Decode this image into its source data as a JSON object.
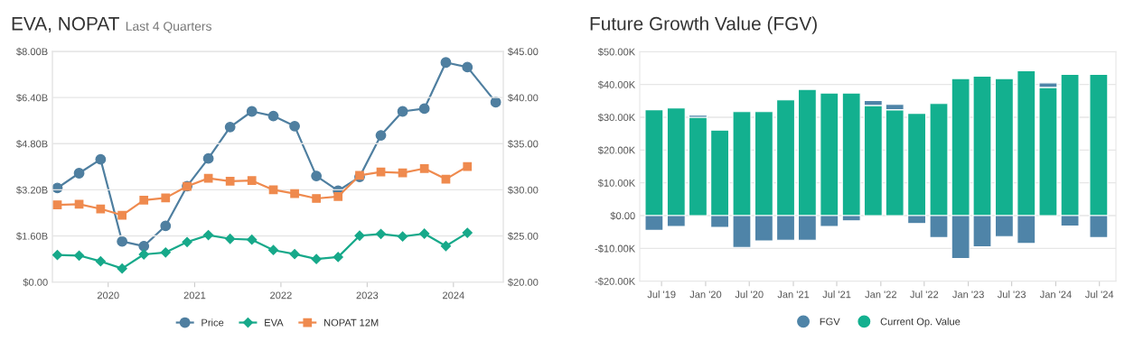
{
  "chart_data": [
    {
      "type": "line",
      "title": "EVA, NOPAT",
      "subtitle": "Last 4 Quarters",
      "series": [
        {
          "name": "Price",
          "color": "#4f7fa0",
          "marker": "circle",
          "axis": "y2",
          "x": [
            "2019-05-31",
            "2019-08-31",
            "2019-11-30",
            "2020-02-29",
            "2020-05-31",
            "2020-08-31",
            "2020-11-30",
            "2021-02-28",
            "2021-05-31",
            "2021-08-31",
            "2021-11-30",
            "2022-02-28",
            "2022-05-31",
            "2022-08-31",
            "2022-11-30",
            "2023-02-28",
            "2023-05-31",
            "2023-08-31",
            "2023-11-30",
            "2024-02-29",
            "2024-06-28"
          ],
          "values": [
            30.2,
            31.8,
            33.3,
            24.4,
            23.9,
            26.1,
            30.4,
            33.4,
            36.8,
            38.5,
            38.0,
            36.9,
            31.5,
            29.9,
            31.4,
            35.9,
            38.5,
            38.8,
            43.8,
            43.3,
            39.5
          ]
        },
        {
          "name": "EVA",
          "color": "#17a98a",
          "marker": "diamond",
          "x": [
            "2019-05-31",
            "2019-08-31",
            "2019-11-30",
            "2020-02-29",
            "2020-05-31",
            "2020-08-31",
            "2020-11-30",
            "2021-02-28",
            "2021-05-31",
            "2021-08-31",
            "2021-11-30",
            "2022-02-28",
            "2022-05-31",
            "2022-08-31",
            "2022-11-30",
            "2023-02-28",
            "2023-05-31",
            "2023-08-31",
            "2023-11-30",
            "2024-02-29"
          ],
          "values": [
            0.94,
            0.92,
            0.72,
            0.47,
            0.96,
            1.03,
            1.39,
            1.63,
            1.5,
            1.47,
            1.11,
            0.97,
            0.8,
            0.87,
            1.61,
            1.67,
            1.58,
            1.68,
            1.25,
            1.71
          ]
        },
        {
          "name": "NOPAT 12M",
          "color": "#ef8a4e",
          "marker": "square",
          "x": [
            "2019-05-31",
            "2019-08-31",
            "2019-11-30",
            "2020-02-29",
            "2020-05-31",
            "2020-08-31",
            "2020-11-30",
            "2021-02-28",
            "2021-05-31",
            "2021-08-31",
            "2021-11-30",
            "2022-02-28",
            "2022-05-31",
            "2022-08-31",
            "2022-11-30",
            "2023-02-28",
            "2023-05-31",
            "2023-08-31",
            "2023-11-30",
            "2024-02-29"
          ],
          "values": [
            2.68,
            2.7,
            2.54,
            2.32,
            2.84,
            2.92,
            3.32,
            3.6,
            3.5,
            3.52,
            3.2,
            3.07,
            2.9,
            2.97,
            3.7,
            3.82,
            3.79,
            3.94,
            3.57,
            4.01
          ]
        }
      ],
      "xlim": [
        "2019-05-10",
        "2024-07-30"
      ],
      "xticks": [
        {
          "value": "2020-01-01",
          "label": "2020"
        },
        {
          "value": "2021-01-01",
          "label": "2021"
        },
        {
          "value": "2022-01-01",
          "label": "2022"
        },
        {
          "value": "2023-01-01",
          "label": "2023"
        },
        {
          "value": "2024-01-01",
          "label": "2024"
        }
      ],
      "ylim": [
        0,
        8
      ],
      "yticks": [
        {
          "value": 0,
          "label": "$0.00"
        },
        {
          "value": 1.6,
          "label": "$1.60B"
        },
        {
          "value": 3.2,
          "label": "$3.20B"
        },
        {
          "value": 4.8,
          "label": "$4.80B"
        },
        {
          "value": 6.4,
          "label": "$6.40B"
        },
        {
          "value": 8,
          "label": "$8.00B"
        }
      ],
      "y2lim": [
        20,
        45
      ],
      "y2ticks": [
        {
          "value": 20,
          "label": "$20.00"
        },
        {
          "value": 25,
          "label": "$25.00"
        },
        {
          "value": 30,
          "label": "$30.00"
        },
        {
          "value": 35,
          "label": "$35.00"
        },
        {
          "value": 40,
          "label": "$40.00"
        },
        {
          "value": 45,
          "label": "$45.00"
        }
      ],
      "grid": "y",
      "legend": "bottom"
    },
    {
      "type": "bar",
      "title": "Future Growth Value (FGV)",
      "stacked": true,
      "x": [
        "2019-05-31",
        "2019-08-31",
        "2019-11-30",
        "2020-02-29",
        "2020-05-31",
        "2020-08-31",
        "2020-11-30",
        "2021-02-28",
        "2021-05-31",
        "2021-08-31",
        "2021-11-30",
        "2022-02-28",
        "2022-05-31",
        "2022-08-31",
        "2022-11-30",
        "2023-02-28",
        "2023-05-31",
        "2023-08-31",
        "2023-11-30",
        "2024-02-29",
        "2024-06-28"
      ],
      "series": [
        {
          "name": "Current Op. Value",
          "color": "#13b08f",
          "values": [
            32.3,
            32.8,
            30.0,
            26.1,
            31.7,
            31.7,
            35.3,
            38.5,
            37.4,
            37.4,
            33.6,
            32.3,
            31.2,
            34.2,
            41.8,
            42.5,
            41.8,
            44.2,
            39.1,
            43.1,
            43.1
          ]
        },
        {
          "name": "FGV",
          "color": "#4f84a8",
          "values": [
            -4.5,
            -3.3,
            0.6,
            -3.6,
            -9.7,
            -7.7,
            -7.5,
            -7.5,
            -3.3,
            -1.6,
            1.5,
            1.6,
            -2.4,
            -6.7,
            -13.1,
            -9.5,
            -6.4,
            -8.5,
            1.4,
            -3.2,
            -6.7
          ]
        }
      ],
      "xlim": [
        "2019-04-01",
        "2024-09-08"
      ],
      "xticks": [
        {
          "value": "2019-07-01",
          "label": "Jul '19"
        },
        {
          "value": "2020-01-01",
          "label": "Jan '20"
        },
        {
          "value": "2020-07-01",
          "label": "Jul '20"
        },
        {
          "value": "2021-01-01",
          "label": "Jan '21"
        },
        {
          "value": "2021-07-01",
          "label": "Jul '21"
        },
        {
          "value": "2022-01-01",
          "label": "Jan '22"
        },
        {
          "value": "2022-07-01",
          "label": "Jul '22"
        },
        {
          "value": "2023-01-01",
          "label": "Jan '23"
        },
        {
          "value": "2023-07-01",
          "label": "Jul '23"
        },
        {
          "value": "2024-01-01",
          "label": "Jan '24"
        },
        {
          "value": "2024-07-01",
          "label": "Jul '24"
        }
      ],
      "ylim": [
        -20,
        50
      ],
      "yticks": [
        {
          "value": -20,
          "label": "-$20.00K"
        },
        {
          "value": -10,
          "label": "-$10.00K"
        },
        {
          "value": 0,
          "label": "$0.00"
        },
        {
          "value": 10,
          "label": "$10.00K"
        },
        {
          "value": 20,
          "label": "$20.00K"
        },
        {
          "value": 30,
          "label": "$30.00K"
        },
        {
          "value": 40,
          "label": "$40.00K"
        },
        {
          "value": 50,
          "label": "$50.00K"
        }
      ],
      "grid": "y",
      "legend": "bottom"
    }
  ]
}
